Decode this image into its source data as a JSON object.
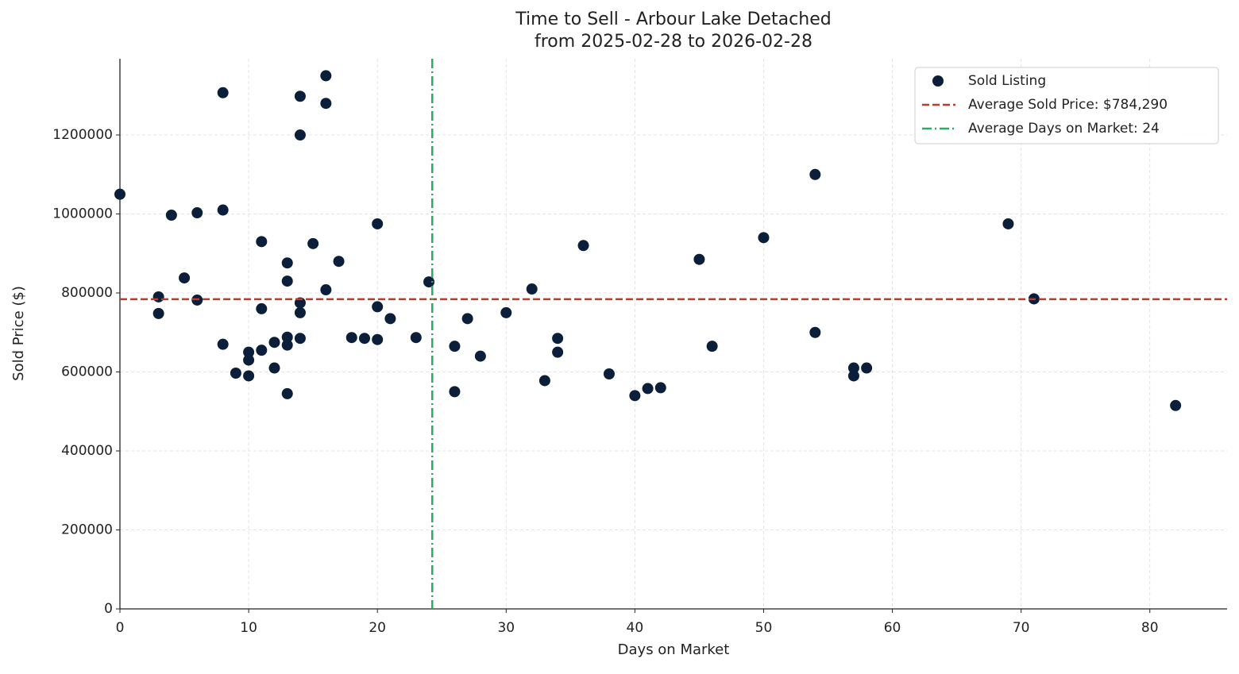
{
  "chart_data": {
    "type": "scatter",
    "title": "Time to Sell - Arbour Lake Detached",
    "subtitle": "from 2025-02-28 to 2026-02-28",
    "x_label": "Days on Market",
    "y_label": "Sold Price ($)",
    "series": [
      {
        "name": "Sold Listing",
        "color": "#0b1f3a",
        "x": [
          0,
          3,
          3,
          4,
          5,
          6,
          6,
          8,
          8,
          8,
          9,
          10,
          10,
          10,
          11,
          11,
          11,
          12,
          12,
          13,
          13,
          13,
          13,
          13,
          14,
          14,
          14,
          14,
          14,
          15,
          16,
          16,
          16,
          17,
          18,
          19,
          20,
          20,
          20,
          21,
          23,
          24,
          26,
          26,
          27,
          28,
          30,
          32,
          33,
          34,
          34,
          36,
          38,
          40,
          41,
          42,
          45,
          46,
          50,
          54,
          54,
          57,
          57,
          58,
          69,
          71,
          82
        ],
        "values": [
          1050000,
          790000,
          748000,
          997000,
          838000,
          1003000,
          782000,
          1307000,
          1010000,
          670000,
          597000,
          650000,
          630000,
          590000,
          930000,
          760000,
          655000,
          675000,
          610000,
          876000,
          830000,
          688000,
          668000,
          545000,
          1298000,
          1200000,
          775000,
          750000,
          685000,
          925000,
          1350000,
          1280000,
          808000,
          880000,
          687000,
          685000,
          975000,
          765000,
          682000,
          735000,
          687000,
          828000,
          665000,
          550000,
          735000,
          640000,
          750000,
          810000,
          578000,
          685000,
          650000,
          920000,
          595000,
          540000,
          558000,
          560000,
          885000,
          665000,
          940000,
          1100000,
          700000,
          610000,
          590000,
          610000,
          975000,
          785000,
          515000
        ]
      }
    ],
    "reference_lines": [
      {
        "label": "Average Sold Price: $784,290",
        "orientation": "horizontal",
        "value": 784290,
        "color": "#c0392b",
        "dash": "dashed"
      },
      {
        "label": "Average Days on Market: 24",
        "orientation": "vertical",
        "value": 24.26,
        "color": "#27ae60",
        "dash": "dashdot"
      }
    ],
    "xlim": [
      0,
      86
    ],
    "xticks": [
      0,
      10,
      20,
      30,
      40,
      50,
      60,
      70,
      80
    ],
    "ylim": [
      0,
      1393000
    ],
    "yticks": [
      0,
      200000,
      400000,
      600000,
      800000,
      1000000,
      1200000
    ],
    "grid": true,
    "legend": "upper right"
  }
}
